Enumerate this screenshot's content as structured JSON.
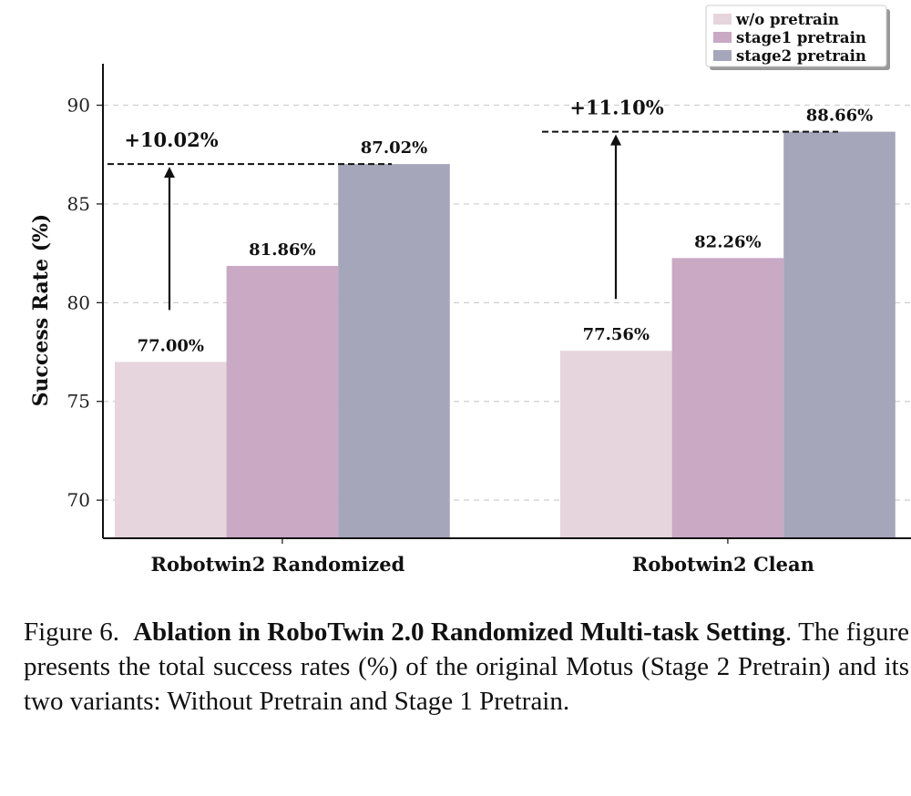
{
  "chart_data": {
    "type": "bar",
    "title": "",
    "xlabel": "",
    "ylabel": "Success Rate (%)",
    "ylim": [
      68.07,
      92.1
    ],
    "yticks": [
      70,
      75,
      80,
      85,
      90
    ],
    "grid": true,
    "legend_position": "top-right",
    "categories": [
      "Robotwin2 Randomized",
      "Robotwin2 Clean"
    ],
    "series": [
      {
        "name": "w/o pretrain",
        "color": "#e6d5dc",
        "values": [
          77.0,
          77.56
        ],
        "labels": [
          "77.00%",
          "77.56%"
        ]
      },
      {
        "name": "stage1 pretrain",
        "color": "#c9a9c4",
        "values": [
          81.86,
          82.26
        ],
        "labels": [
          "81.86%",
          "82.26%"
        ]
      },
      {
        "name": "stage2 pretrain",
        "color": "#a6a6bb",
        "values": [
          87.02,
          88.66
        ],
        "labels": [
          "87.02%",
          "88.66%"
        ]
      }
    ],
    "annotations": [
      {
        "text": "+10.02%",
        "from": 77.0,
        "to": 87.02,
        "category": 0
      },
      {
        "text": "+11.10%",
        "from": 77.56,
        "to": 88.66,
        "category": 1
      }
    ]
  },
  "caption": {
    "figure_label": "Figure 6.",
    "title": "Ablation in RoboTwin 2.0 Randomized Multi-task Setting",
    "body": ". The figure presents the total success rates (%) of the original Motus (Stage 2 Pretrain) and its two variants: Without Pretrain and Stage 1 Pretrain."
  }
}
